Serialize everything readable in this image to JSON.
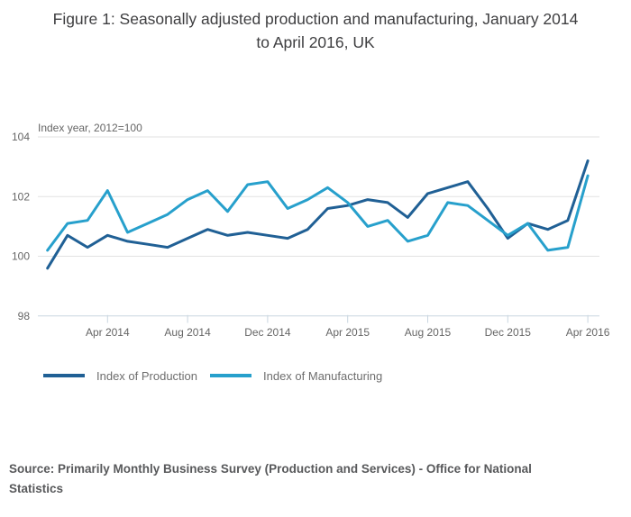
{
  "title": "Figure 1: Seasonally adjusted production and manufacturing, January 2014\nto April 2016, UK",
  "chart_data": {
    "type": "line",
    "unit_label": "Index year, 2012=100",
    "x": [
      "Jan 2014",
      "Feb 2014",
      "Mar 2014",
      "Apr 2014",
      "May 2014",
      "Jun 2014",
      "Jul 2014",
      "Aug 2014",
      "Sep 2014",
      "Oct 2014",
      "Nov 2014",
      "Dec 2014",
      "Jan 2015",
      "Feb 2015",
      "Mar 2015",
      "Apr 2015",
      "May 2015",
      "Jun 2015",
      "Jul 2015",
      "Aug 2015",
      "Sep 2015",
      "Oct 2015",
      "Nov 2015",
      "Dec 2015",
      "Jan 2016",
      "Feb 2016",
      "Mar 2016",
      "Apr 2016"
    ],
    "series": [
      {
        "name": "Index of Production",
        "color": "#206095",
        "values": [
          99.6,
          100.7,
          100.3,
          100.7,
          100.5,
          100.4,
          100.3,
          100.6,
          100.9,
          100.7,
          100.8,
          100.7,
          100.6,
          100.9,
          101.6,
          101.7,
          101.9,
          101.8,
          101.3,
          102.1,
          102.3,
          102.5,
          101.6,
          100.6,
          101.1,
          100.9,
          101.2,
          103.2
        ]
      },
      {
        "name": "Index of Manufacturing",
        "color": "#27A0CC",
        "values": [
          100.2,
          101.1,
          101.2,
          102.2,
          100.8,
          101.1,
          101.4,
          101.9,
          102.2,
          101.5,
          102.4,
          102.5,
          101.6,
          101.9,
          102.3,
          101.8,
          101.0,
          101.2,
          100.5,
          100.7,
          101.8,
          101.7,
          101.2,
          100.7,
          101.1,
          100.2,
          100.3,
          102.7
        ]
      }
    ],
    "yticks": [
      98,
      100,
      102,
      104
    ],
    "ylim": [
      98,
      104
    ],
    "xticks": [
      {
        "index": 3,
        "label": "Apr 2014"
      },
      {
        "index": 7,
        "label": "Aug 2014"
      },
      {
        "index": 11,
        "label": "Dec 2014"
      },
      {
        "index": 15,
        "label": "Apr 2015"
      },
      {
        "index": 19,
        "label": "Aug 2015"
      },
      {
        "index": 23,
        "label": "Dec 2015"
      },
      {
        "index": 27,
        "label": "Apr 2016"
      }
    ],
    "grid": true,
    "legend_position": "bottom-left",
    "grid_color": "#e2e2e2",
    "axis_color": "#c9d6e0"
  },
  "legend": {
    "production_label": "Index of Production",
    "manufacturing_label": "Index of Manufacturing"
  },
  "source": "Source: Primarily Monthly Business Survey (Production and Services) - Office for National\nStatistics"
}
